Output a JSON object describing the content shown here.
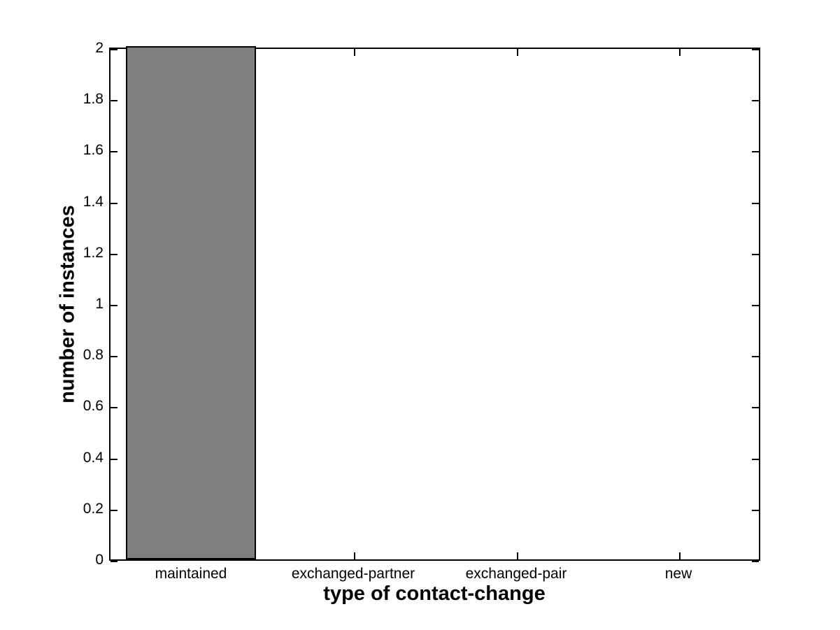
{
  "figure": {
    "background": "#ffffff"
  },
  "chart_data": {
    "type": "bar",
    "title": "",
    "categories": [
      "maintained",
      "exchanged-partner",
      "exchanged-pair",
      "new"
    ],
    "values": [
      2,
      0,
      0,
      0
    ],
    "xlabel": "type of contact-change",
    "ylabel": "number of instances",
    "ylim": [
      0,
      2
    ],
    "ytick_step": 0.2,
    "yticks": [
      0,
      0.2,
      0.4,
      0.6,
      0.8,
      1,
      1.2,
      1.4,
      1.6,
      1.8,
      2
    ],
    "ytick_labels": [
      "0",
      "0.2",
      "0.4",
      "0.6",
      "0.8",
      "1",
      "1.2",
      "1.4",
      "1.6",
      "1.8",
      "2"
    ],
    "bar_width_fraction": 0.8,
    "bar_color": "#7f7f7f",
    "bar_edge_color": "#000000",
    "axis_color": "#000000",
    "grid": false,
    "legend_position": "none",
    "tick_direction": "in",
    "box": true
  }
}
